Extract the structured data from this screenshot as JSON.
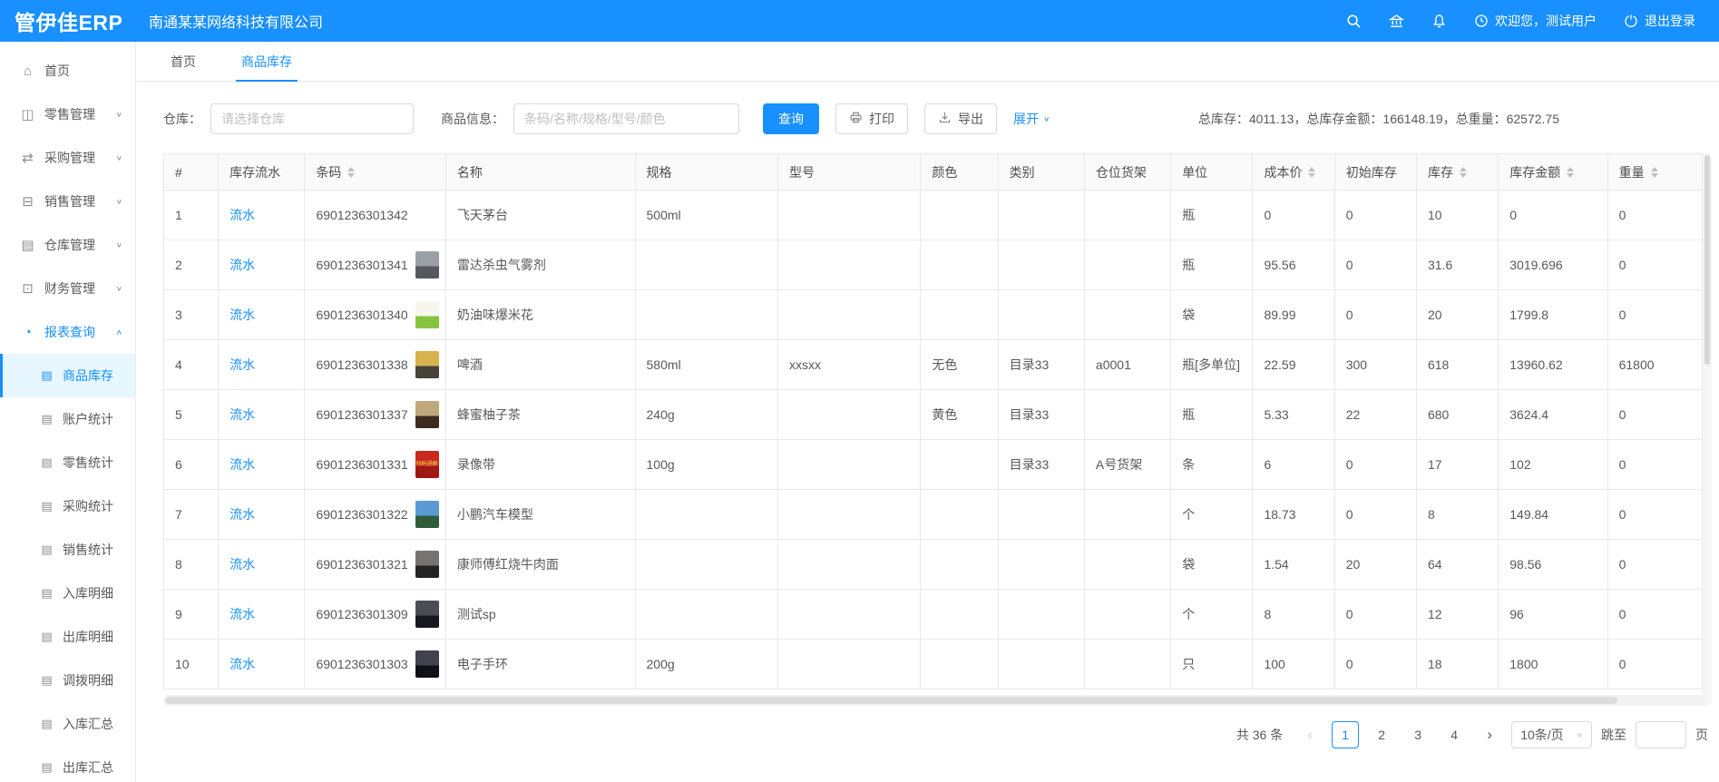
{
  "header": {
    "logo": "管伊佳ERP",
    "company": "南通某某网络科技有限公司",
    "welcome": "欢迎您，测试用户",
    "logout": "退出登录"
  },
  "icons": {
    "search-icon": "magnifier",
    "bank-icon": "building",
    "bell-icon": "bell",
    "clock-icon": "clock",
    "logout-icon": "power-circle",
    "print-icon": "printer",
    "export-icon": "download-arrow",
    "chevron-down-icon": "∨",
    "chevron-up-icon": "∧",
    "sort-icon": "▲▼"
  },
  "sidebar": {
    "submenu_icon": "▤",
    "items": [
      {
        "name": "home",
        "label": "首页",
        "icon": "⌂",
        "chevron": null,
        "active": false
      },
      {
        "name": "retail",
        "label": "零售管理",
        "icon": "◫",
        "chevron": "down",
        "active": false
      },
      {
        "name": "purchase",
        "label": "采购管理",
        "icon": "⇄",
        "chevron": "down",
        "active": false
      },
      {
        "name": "sales",
        "label": "销售管理",
        "icon": "⊟",
        "chevron": "down",
        "active": false
      },
      {
        "name": "warehouse",
        "label": "仓库管理",
        "icon": "▤",
        "chevron": "down",
        "active": false
      },
      {
        "name": "finance",
        "label": "财务管理",
        "icon": "⊡",
        "chevron": "down",
        "active": false
      },
      {
        "name": "report",
        "label": "报表查询",
        "icon": "◔",
        "chevron": "up",
        "active": true
      }
    ],
    "submenu": [
      {
        "name": "goods-stock",
        "label": "商品库存",
        "selected": true
      },
      {
        "name": "account-stats",
        "label": "账户统计",
        "selected": false
      },
      {
        "name": "retail-stats",
        "label": "零售统计",
        "selected": false
      },
      {
        "name": "purchase-stats",
        "label": "采购统计",
        "selected": false
      },
      {
        "name": "sales-stats",
        "label": "销售统计",
        "selected": false
      },
      {
        "name": "inbound-detail",
        "label": "入库明细",
        "selected": false
      },
      {
        "name": "outbound-detail",
        "label": "出库明细",
        "selected": false
      },
      {
        "name": "transfer-detail",
        "label": "调拨明细",
        "selected": false
      },
      {
        "name": "inbound-summary",
        "label": "入库汇总",
        "selected": false
      },
      {
        "name": "outbound-summary",
        "label": "出库汇总",
        "selected": false
      }
    ]
  },
  "tabs": [
    {
      "name": "home",
      "label": "首页",
      "active": false
    },
    {
      "name": "goods-stock",
      "label": "商品库存",
      "active": true
    }
  ],
  "filter": {
    "warehouse_label": "仓库：",
    "warehouse_placeholder": "请选择仓库",
    "product_label": "商品信息：",
    "product_placeholder": "条码/名称/规格/型号/颜色",
    "search_button": "查询",
    "print_button": "打印",
    "export_button": "导出",
    "expand_link": "展开",
    "summary": "总库存：4011.13，总库存金额：166148.19，总重量：62572.75"
  },
  "table": {
    "link_label": "流水",
    "columns": [
      {
        "key": "index",
        "label": "#",
        "sortable": false
      },
      {
        "key": "flow",
        "label": "库存流水",
        "sortable": false
      },
      {
        "key": "barcode",
        "label": "条码",
        "sortable": true
      },
      {
        "key": "name",
        "label": "名称",
        "sortable": false
      },
      {
        "key": "spec",
        "label": "规格",
        "sortable": false
      },
      {
        "key": "model",
        "label": "型号",
        "sortable": false
      },
      {
        "key": "color",
        "label": "颜色",
        "sortable": false
      },
      {
        "key": "category",
        "label": "类别",
        "sortable": false
      },
      {
        "key": "shelf",
        "label": "仓位货架",
        "sortable": false
      },
      {
        "key": "unit",
        "label": "单位",
        "sortable": false
      },
      {
        "key": "cost",
        "label": "成本价",
        "sortable": true
      },
      {
        "key": "initial",
        "label": "初始库存",
        "sortable": false
      },
      {
        "key": "stock",
        "label": "库存",
        "sortable": true
      },
      {
        "key": "amount",
        "label": "库存金额",
        "sortable": true
      },
      {
        "key": "weight",
        "label": "重量",
        "sortable": true
      }
    ],
    "rows": [
      {
        "index": "1",
        "barcode": "6901236301342",
        "thumb": null,
        "thumb_text": "",
        "name": "飞天茅台",
        "spec": "500ml",
        "model": "",
        "color": "",
        "category": "",
        "shelf": "",
        "unit": "瓶",
        "cost": "0",
        "initial": "0",
        "stock": "10",
        "amount": "0",
        "weight": "0"
      },
      {
        "index": "2",
        "barcode": "6901236301341",
        "thumb": [
          "#9aa0a6",
          "#55585c"
        ],
        "thumb_text": "",
        "name": "雷达杀虫气雾剂",
        "spec": "",
        "model": "",
        "color": "",
        "category": "",
        "shelf": "",
        "unit": "瓶",
        "cost": "95.56",
        "initial": "0",
        "stock": "31.6",
        "amount": "3019.696",
        "weight": "0"
      },
      {
        "index": "3",
        "barcode": "6901236301340",
        "thumb": [
          "#f6f6ef",
          "#86c440"
        ],
        "thumb_text": "",
        "name": "奶油味爆米花",
        "spec": "",
        "model": "",
        "color": "",
        "category": "",
        "shelf": "",
        "unit": "袋",
        "cost": "89.99",
        "initial": "0",
        "stock": "20",
        "amount": "1799.8",
        "weight": "0"
      },
      {
        "index": "4",
        "barcode": "6901236301338",
        "thumb": [
          "#d6b34c",
          "#47423a"
        ],
        "thumb_text": "",
        "name": "啤酒",
        "spec": "580ml",
        "model": "xxsxx",
        "color": "无色",
        "category": "目录33",
        "shelf": "a0001",
        "unit": "瓶[多单位]",
        "cost": "22.59",
        "initial": "300",
        "stock": "618",
        "amount": "13960.62",
        "weight": "61800"
      },
      {
        "index": "5",
        "barcode": "6901236301337",
        "thumb": [
          "#bfa87e",
          "#3d2c1e"
        ],
        "thumb_text": "",
        "name": "蜂蜜柚子茶",
        "spec": "240g",
        "model": "",
        "color": "黄色",
        "category": "目录33",
        "shelf": "",
        "unit": "瓶",
        "cost": "5.33",
        "initial": "22",
        "stock": "680",
        "amount": "3624.4",
        "weight": "0"
      },
      {
        "index": "6",
        "barcode": "6901236301331",
        "thumb": [
          "#c8281e",
          "#a01812"
        ],
        "thumb_text": "扫码进群",
        "name": "录像带",
        "spec": "100g",
        "model": "",
        "color": "",
        "category": "目录33",
        "shelf": "A号货架",
        "unit": "条",
        "cost": "6",
        "initial": "0",
        "stock": "17",
        "amount": "102",
        "weight": "0"
      },
      {
        "index": "7",
        "barcode": "6901236301322",
        "thumb": [
          "#5a9bd4",
          "#2f5d3a"
        ],
        "thumb_text": "",
        "name": "小鹏汽车模型",
        "spec": "",
        "model": "",
        "color": "",
        "category": "",
        "shelf": "",
        "unit": "个",
        "cost": "18.73",
        "initial": "0",
        "stock": "8",
        "amount": "149.84",
        "weight": "0"
      },
      {
        "index": "8",
        "barcode": "6901236301321",
        "thumb": [
          "#77736e",
          "#262422"
        ],
        "thumb_text": "",
        "name": "康师傅红烧牛肉面",
        "spec": "",
        "model": "",
        "color": "",
        "category": "",
        "shelf": "",
        "unit": "袋",
        "cost": "1.54",
        "initial": "20",
        "stock": "64",
        "amount": "98.56",
        "weight": "0"
      },
      {
        "index": "9",
        "barcode": "6901236301309",
        "thumb": [
          "#4c4c55",
          "#17171d"
        ],
        "thumb_text": "",
        "name": "测试sp",
        "spec": "",
        "model": "",
        "color": "",
        "category": "",
        "shelf": "",
        "unit": "个",
        "cost": "8",
        "initial": "0",
        "stock": "12",
        "amount": "96",
        "weight": "0"
      },
      {
        "index": "10",
        "barcode": "6901236301303",
        "thumb": [
          "#43434d",
          "#101016"
        ],
        "thumb_text": "",
        "name": "电子手环",
        "spec": "200g",
        "model": "",
        "color": "",
        "category": "",
        "shelf": "",
        "unit": "只",
        "cost": "100",
        "initial": "0",
        "stock": "18",
        "amount": "1800",
        "weight": "0"
      }
    ]
  },
  "pagination": {
    "total": "共 36 条",
    "pages": [
      "1",
      "2",
      "3",
      "4"
    ],
    "current": "1",
    "page_size": "10条/页",
    "jump_label": "跳至",
    "jump_suffix": "页"
  },
  "colors": {
    "primary": "#1890ff",
    "selected_bg": "#e6f7ff",
    "border": "#e9e9e9"
  }
}
